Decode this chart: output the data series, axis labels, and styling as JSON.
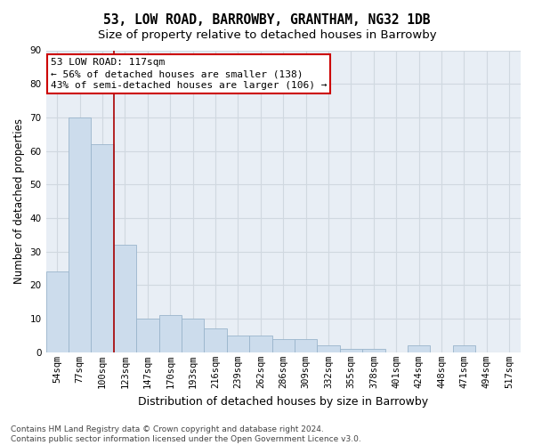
{
  "title": "53, LOW ROAD, BARROWBY, GRANTHAM, NG32 1DB",
  "subtitle": "Size of property relative to detached houses in Barrowby",
  "xlabel": "Distribution of detached houses by size in Barrowby",
  "ylabel": "Number of detached properties",
  "bar_values": [
    24,
    70,
    62,
    32,
    10,
    11,
    10,
    7,
    5,
    5,
    4,
    4,
    2,
    1,
    1,
    0,
    2,
    0,
    2,
    0,
    0
  ],
  "bar_labels": [
    "54sqm",
    "77sqm",
    "100sqm",
    "123sqm",
    "147sqm",
    "170sqm",
    "193sqm",
    "216sqm",
    "239sqm",
    "262sqm",
    "286sqm",
    "309sqm",
    "332sqm",
    "355sqm",
    "378sqm",
    "401sqm",
    "424sqm",
    "448sqm",
    "471sqm",
    "494sqm",
    "517sqm"
  ],
  "bar_color": "#ccdcec",
  "bar_edge_color": "#9ab5cc",
  "background_color": "#e8eef5",
  "grid_color": "#d0d8e0",
  "red_line_x": 2.5,
  "annotation_line1": "53 LOW ROAD: 117sqm",
  "annotation_line2": "← 56% of detached houses are smaller (138)",
  "annotation_line3": "43% of semi-detached houses are larger (106) →",
  "annotation_box_color": "#ffffff",
  "annotation_box_edge": "#cc0000",
  "footnote": "Contains HM Land Registry data © Crown copyright and database right 2024.\nContains public sector information licensed under the Open Government Licence v3.0.",
  "ylim": [
    0,
    90
  ],
  "yticks": [
    0,
    10,
    20,
    30,
    40,
    50,
    60,
    70,
    80,
    90
  ],
  "title_fontsize": 10.5,
  "subtitle_fontsize": 9.5,
  "xlabel_fontsize": 9,
  "ylabel_fontsize": 8.5,
  "tick_fontsize": 7.5,
  "annotation_fontsize": 8,
  "footnote_fontsize": 6.5
}
